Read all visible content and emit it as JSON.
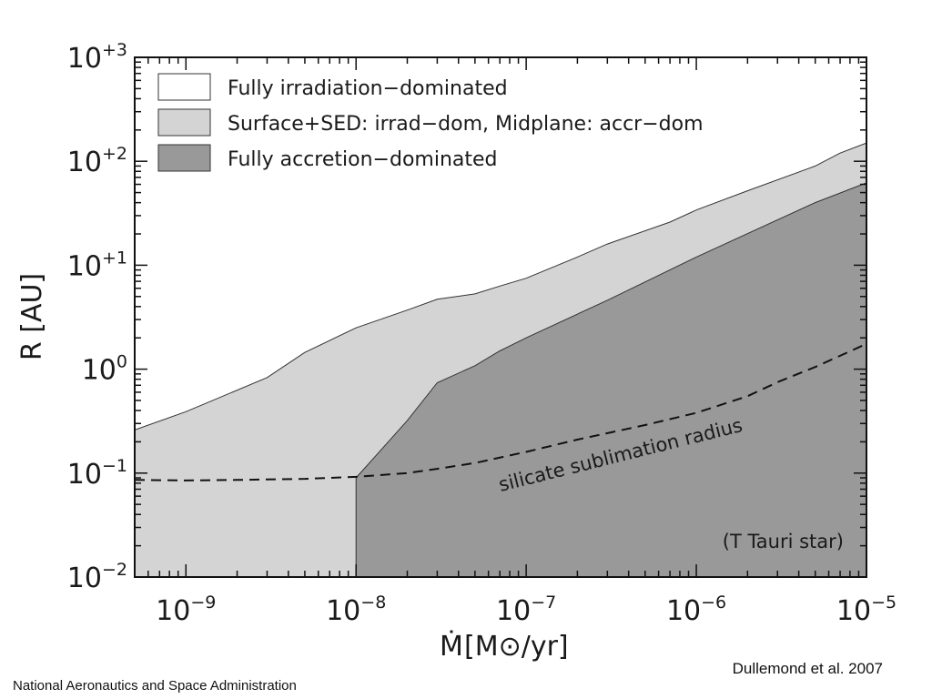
{
  "chart_data": {
    "type": "area",
    "x_scale": "log",
    "y_scale": "log",
    "xlim": [
      5e-10,
      1e-05
    ],
    "ylim": [
      0.01,
      1000
    ],
    "xlabel_main": "Ṁ",
    "xlabel_unit": "[M⊙/yr]",
    "ylabel": "R [AU]",
    "x_ticks": [
      {
        "value": 1e-09,
        "base": "10",
        "exp": "−9"
      },
      {
        "value": 1e-08,
        "base": "10",
        "exp": "−8"
      },
      {
        "value": 1e-07,
        "base": "10",
        "exp": "−7"
      },
      {
        "value": 1e-06,
        "base": "10",
        "exp": "−6"
      },
      {
        "value": 1e-05,
        "base": "10",
        "exp": "−5"
      }
    ],
    "y_ticks": [
      {
        "value": 0.01,
        "base": "10",
        "exp": "−2"
      },
      {
        "value": 0.1,
        "base": "10",
        "exp": "−1"
      },
      {
        "value": 1,
        "base": "10",
        "exp": "0"
      },
      {
        "value": 10,
        "base": "10",
        "exp": "+1"
      },
      {
        "value": 100,
        "base": "10",
        "exp": "+2"
      },
      {
        "value": 1000,
        "base": "10",
        "exp": "+3"
      }
    ],
    "legend": [
      {
        "label": "Fully irradiation−dominated",
        "color": "#ffffff"
      },
      {
        "label": "Surface+SED: irrad−dom, Midplane: accr−dom",
        "color": "#d4d4d4"
      },
      {
        "label": "Fully accretion−dominated",
        "color": "#999999"
      }
    ],
    "series": [
      {
        "name": "Surface+SED: irrad−dom, Midplane: accr−dom",
        "color": "#d4d4d4",
        "upper_boundary": {
          "x": [
            5e-10,
            1e-09,
            3e-09,
            5e-09,
            1e-08,
            2e-08,
            3e-08,
            5e-08,
            7e-08,
            1e-07,
            2e-07,
            3e-07,
            7e-07,
            1e-06,
            2e-06,
            5e-06,
            7e-06,
            1e-05
          ],
          "y": [
            0.26,
            0.39,
            0.83,
            1.45,
            2.5,
            3.7,
            4.7,
            5.3,
            6.3,
            7.5,
            12,
            16,
            26,
            34,
            52,
            90,
            120,
            150
          ]
        }
      },
      {
        "name": "Fully accretion−dominated",
        "color": "#999999",
        "upper_boundary": {
          "x": [
            1e-08,
            1e-08,
            2e-08,
            3e-08,
            5e-08,
            7e-08,
            1e-07,
            3e-07,
            1e-06,
            5e-06,
            1e-05
          ],
          "y": [
            0.01,
            0.09,
            0.32,
            0.74,
            1.08,
            1.5,
            2.0,
            4.6,
            12,
            40,
            62
          ]
        }
      }
    ],
    "line": {
      "name": "silicate sublimation radius",
      "style": "dashed",
      "x": [
        5e-10,
        1e-09,
        2e-09,
        5e-09,
        1e-08,
        2e-08,
        3e-08,
        5e-08,
        1e-07,
        2e-07,
        5e-07,
        1e-06,
        2e-06,
        3e-06,
        5e-06,
        1e-05
      ],
      "y": [
        0.086,
        0.085,
        0.086,
        0.088,
        0.092,
        0.1,
        0.11,
        0.125,
        0.16,
        0.21,
        0.29,
        0.38,
        0.55,
        0.75,
        1.05,
        1.75
      ]
    },
    "annotations": [
      {
        "text": "silicate sublimation radius"
      },
      {
        "text": "(T Tauri star)"
      }
    ]
  },
  "credit": "Dullemond et al. 2007",
  "agency": "National Aeronautics and Space Administration"
}
